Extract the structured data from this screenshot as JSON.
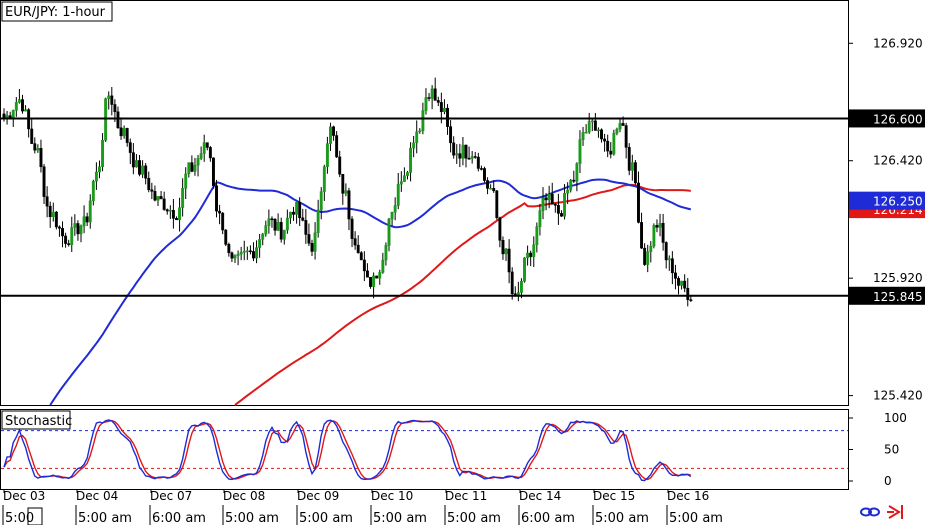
{
  "chart_data": {
    "type": "candlestick",
    "title": "EUR/JPY: 1-hour",
    "y_ticks": [
      126.92,
      126.42,
      125.92,
      125.42
    ],
    "y_tick_labels": [
      "126.920",
      "126.420",
      "125.920",
      "125.420"
    ],
    "ylim": [
      125.38,
      127.1
    ],
    "x_date_labels": [
      "Dec 03",
      "Dec 04",
      "Dec 07",
      "Dec 08",
      "Dec 09",
      "Dec 10",
      "Dec 11",
      "Dec 14",
      "Dec 15",
      "Dec 16"
    ],
    "x_time_labels": [
      "5:00",
      "5:00 am",
      "6:00 am",
      "5:00 am",
      "5:00 am",
      "5:00 am",
      "5:00 am",
      "6:00 am",
      "5:00 am",
      "5:00 am"
    ],
    "horizontal_lines": [
      {
        "value": 126.6,
        "label": "126.600",
        "color": "#000000"
      },
      {
        "value": 125.845,
        "label": "125.845",
        "color": "#000000"
      }
    ],
    "price_tags": [
      {
        "value": 126.25,
        "label": "126.250",
        "color": "#1f2bd6"
      },
      {
        "value": 126.214,
        "label": "126.214",
        "color": "#e01818"
      }
    ],
    "last_price": "125.845",
    "candle_up_color": "#1a9a1a",
    "candle_down_color": "#000000",
    "ma_colors": {
      "fast": "#1f2bd6",
      "slow": "#e01818"
    },
    "stochastic": {
      "label": "Stochastic",
      "y_ticks": [
        100,
        50,
        0
      ],
      "y_tick_labels": [
        "100",
        "50",
        "0"
      ],
      "levels": [
        80,
        20
      ],
      "k_color": "#1f2bd6",
      "d_color": "#e01818"
    },
    "candles": [],
    "stoch_k": [],
    "stoch_d": [],
    "ma_fast": [],
    "ma_slow": []
  }
}
